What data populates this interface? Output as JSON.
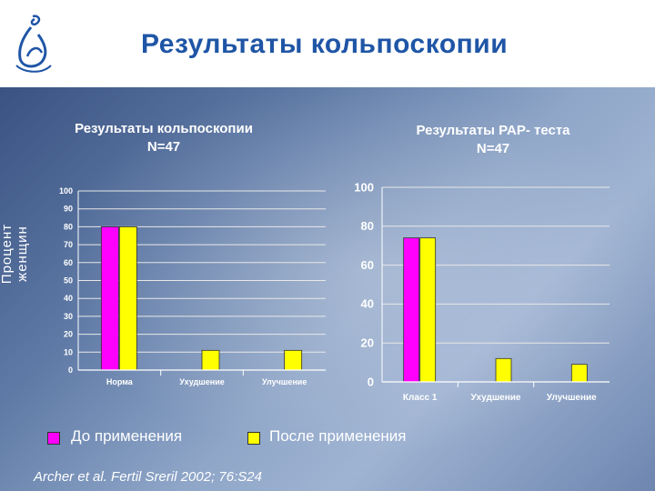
{
  "slide": {
    "title": "Результаты кольпоскопии",
    "citation": "Archer et al. Fertil Sreril 2002; 76:S24",
    "ylabel": "Процент женщин"
  },
  "legend": {
    "before": "До применения",
    "after": "После применения"
  },
  "colors": {
    "before": "#ff00ff",
    "after": "#ffff00",
    "title": "#1f55a6"
  },
  "chart_data": [
    {
      "type": "bar",
      "title_line1": "Результаты кольпоскопии",
      "title_line2": "N=47",
      "categories": [
        "Норма",
        "Ухудшение",
        "Улучшение"
      ],
      "series": [
        {
          "name": "До применения",
          "values": [
            80,
            0,
            0
          ]
        },
        {
          "name": "После применения",
          "values": [
            80,
            11,
            11
          ]
        }
      ],
      "ylabel": "Процент женщин",
      "ylim": [
        0,
        100
      ],
      "yticks": [
        0,
        10,
        20,
        30,
        40,
        50,
        60,
        70,
        80,
        90,
        100
      ],
      "grid": true
    },
    {
      "type": "bar",
      "title_line1": "Результаты PAP- теста",
      "title_line2": "N=47",
      "categories": [
        "Класс 1",
        "Ухудшение",
        "Улучшение"
      ],
      "series": [
        {
          "name": "До применения",
          "values": [
            74,
            0,
            0
          ]
        },
        {
          "name": "После применения",
          "values": [
            74,
            12,
            9
          ]
        }
      ],
      "ylim": [
        0,
        100
      ],
      "yticks": [
        0,
        20,
        40,
        60,
        80,
        100
      ],
      "grid": true
    }
  ]
}
